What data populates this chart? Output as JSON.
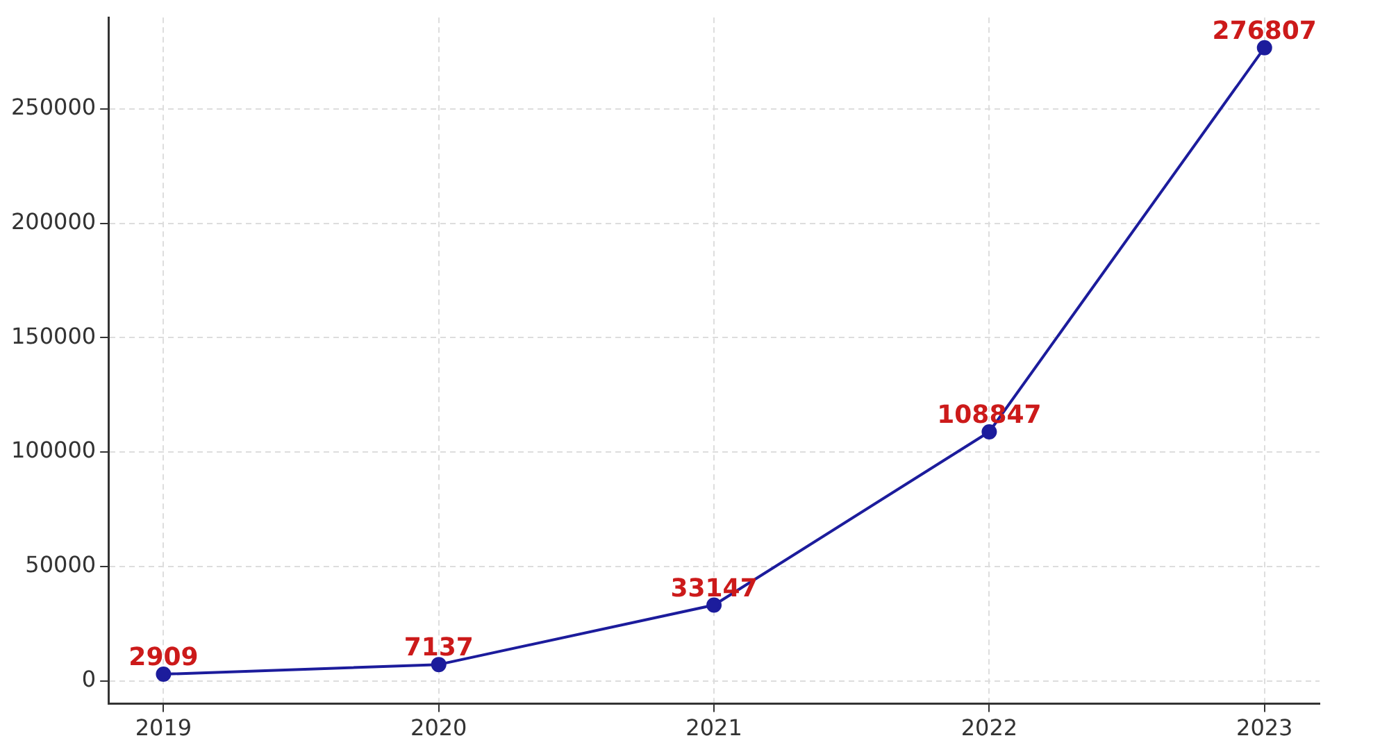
{
  "chart_data": {
    "type": "line",
    "x": [
      2019,
      2020,
      2021,
      2022,
      2023
    ],
    "series": [
      {
        "color": "#1c1c9c",
        "values": [
          2909,
          7137,
          33147,
          108847,
          276807
        ]
      }
    ],
    "xlim": [
      2018.8,
      2023.2
    ],
    "xticks": [
      2019,
      2020,
      2021,
      2022,
      2023
    ],
    "ylim": [
      -10000,
      290000
    ],
    "yticks": [
      0,
      50000,
      100000,
      150000,
      200000,
      250000
    ],
    "grid": true,
    "marker": "circle",
    "line_style": "solid",
    "data_labels": true,
    "legend": false
  }
}
